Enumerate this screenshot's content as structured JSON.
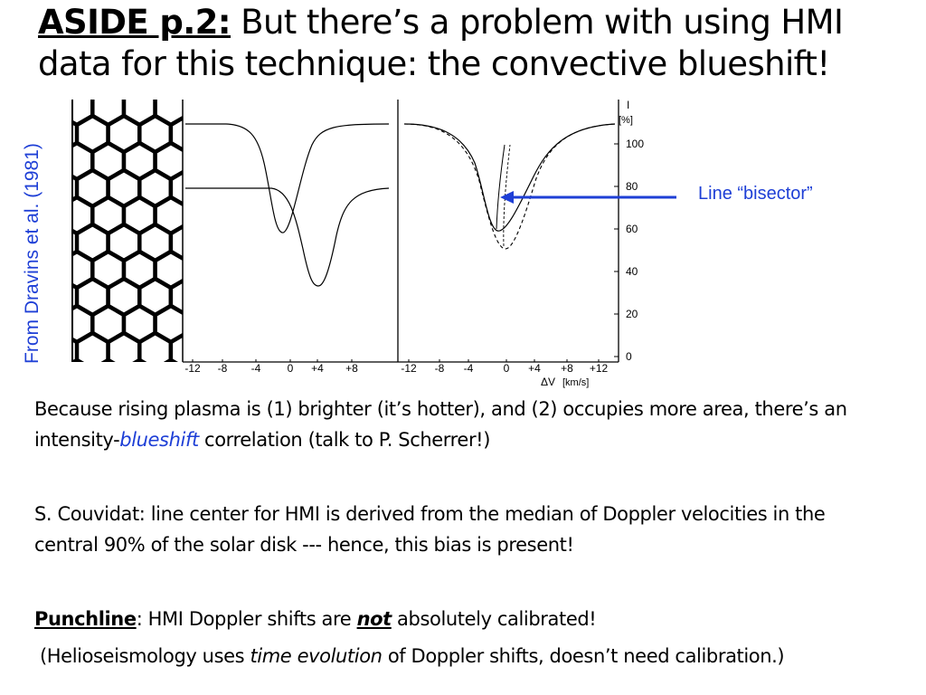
{
  "title": {
    "aside_label": "ASIDE p.2:",
    "line1_rest": " But there’s a problem with using HMI",
    "line2": "data for this technique: the convective blueshift!"
  },
  "credit": "From Dravins et al. (1981)",
  "annotation": "Line “bisector”",
  "figure": {
    "y_axis_title": "I",
    "y_axis_unit": "[%]",
    "y_ticks": [
      "100",
      "80",
      "60",
      "40",
      "20",
      "0"
    ],
    "x_ticks_left": [
      "-12",
      "-8",
      "-4",
      "0",
      "+4",
      "+8"
    ],
    "x_ticks_right": [
      "-12",
      "-8",
      "-4",
      "0",
      "+4",
      "+8",
      "+12"
    ],
    "x_axis_label": "ΔV",
    "x_axis_unit": "[km/s]"
  },
  "paragraphs": {
    "p1_a": "Because rising plasma is (1) brighter (it’s hotter), and (2) occupies more area, there’s an intensity-",
    "p1_blue": "blueshift",
    "p1_b": " correlation (talk to P. Scherrer!)",
    "p2": "S. Couvidat: line center for HMI is derived from the median of Doppler velocities in the central 90% of the solar disk --- hence, this bias is present!",
    "p3_label": "Punchline",
    "p3_a": ": HMI Doppler shifts are ",
    "p3_not": "not",
    "p3_b": " absolutely calibrated!",
    "p4_a": "(Helioseismology uses ",
    "p4_it": "time evolution",
    "p4_b": " of Doppler shifts, doesn’t need calibration.)"
  },
  "colors": {
    "accent_blue": "#1e3fd6"
  }
}
